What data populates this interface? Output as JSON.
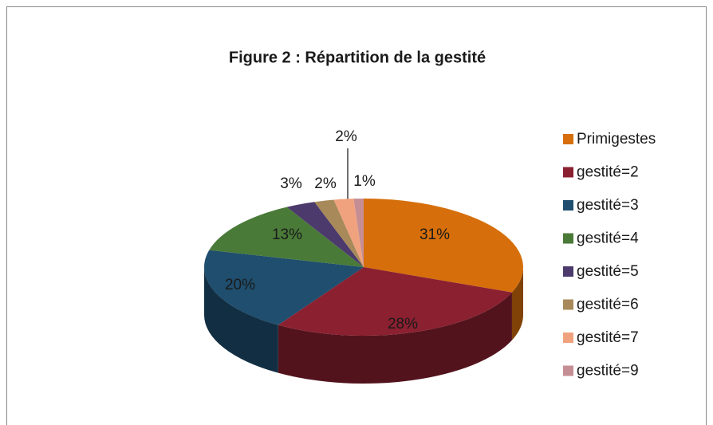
{
  "chart_data": {
    "type": "pie3d",
    "title": "Figure 2 : Répartition de la gestité",
    "categories": [
      "Primigestes",
      "gestité=2",
      "gestité=3",
      "gestité=4",
      "gestité=5",
      "gestité=6",
      "gestité=7",
      "gestité=9"
    ],
    "values": [
      31,
      28,
      20,
      13,
      3,
      2,
      2,
      1
    ],
    "value_labels": [
      "31%",
      "28%",
      "20%",
      "13%",
      "3%",
      "2%",
      "2%",
      "1%"
    ],
    "colors": [
      "#d66f0b",
      "#8b2030",
      "#1f4e6e",
      "#4a7a38",
      "#4b3a6b",
      "#a88a5a",
      "#f0a27e",
      "#c58e94"
    ],
    "legend": "right"
  }
}
